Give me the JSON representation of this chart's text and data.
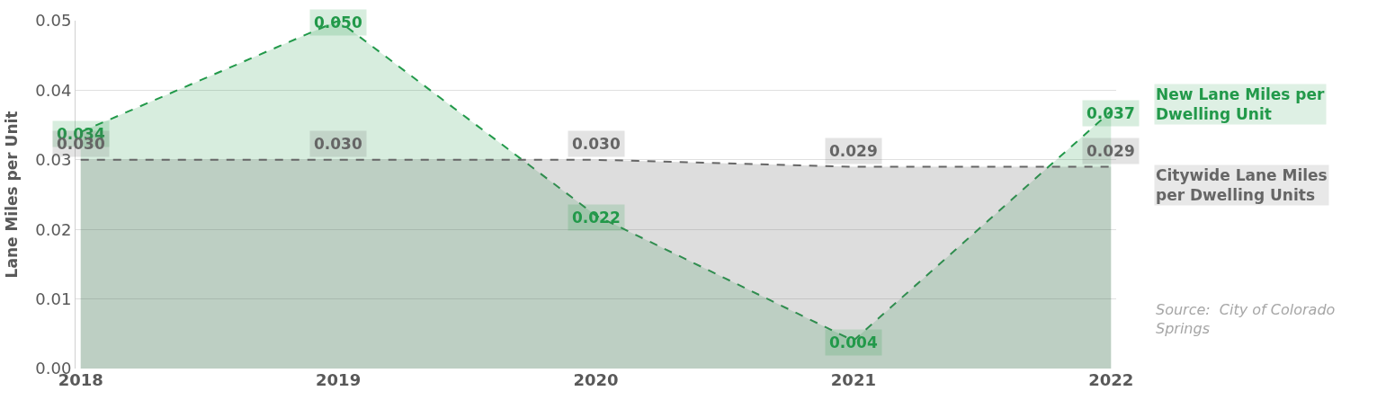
{
  "chart_data": {
    "type": "area",
    "ylabel": "Lane Miles per Unit",
    "categories": [
      "2018",
      "2019",
      "2020",
      "2021",
      "2022"
    ],
    "series": [
      {
        "name": "New Lane Miles per Dwelling Unit",
        "color": "#22994a",
        "values": [
          0.034,
          0.05,
          0.022,
          0.004,
          0.037
        ],
        "value_labels": [
          "0.034",
          "0.050",
          "0.022",
          "0.004",
          "0.037"
        ]
      },
      {
        "name": "Citywide Lane Miles per Dwelling Units",
        "color": "#666666",
        "values": [
          0.03,
          0.03,
          0.03,
          0.029,
          0.029
        ],
        "value_labels": [
          "0.030",
          "0.030",
          "0.030",
          "0.029",
          "0.029"
        ]
      }
    ],
    "ylim": [
      0,
      0.05
    ],
    "yticks": [
      {
        "value": 0,
        "label": "0.00"
      },
      {
        "value": 0.01,
        "label": "0.01"
      },
      {
        "value": 0.02,
        "label": "0.02"
      },
      {
        "value": 0.03,
        "label": "0.03"
      },
      {
        "value": 0.04,
        "label": "0.04"
      },
      {
        "value": 0.05,
        "label": "0.05"
      }
    ],
    "grid": "y",
    "line_style": "dashed",
    "annotations": [
      "Source:  City of Colorado Springs"
    ]
  }
}
